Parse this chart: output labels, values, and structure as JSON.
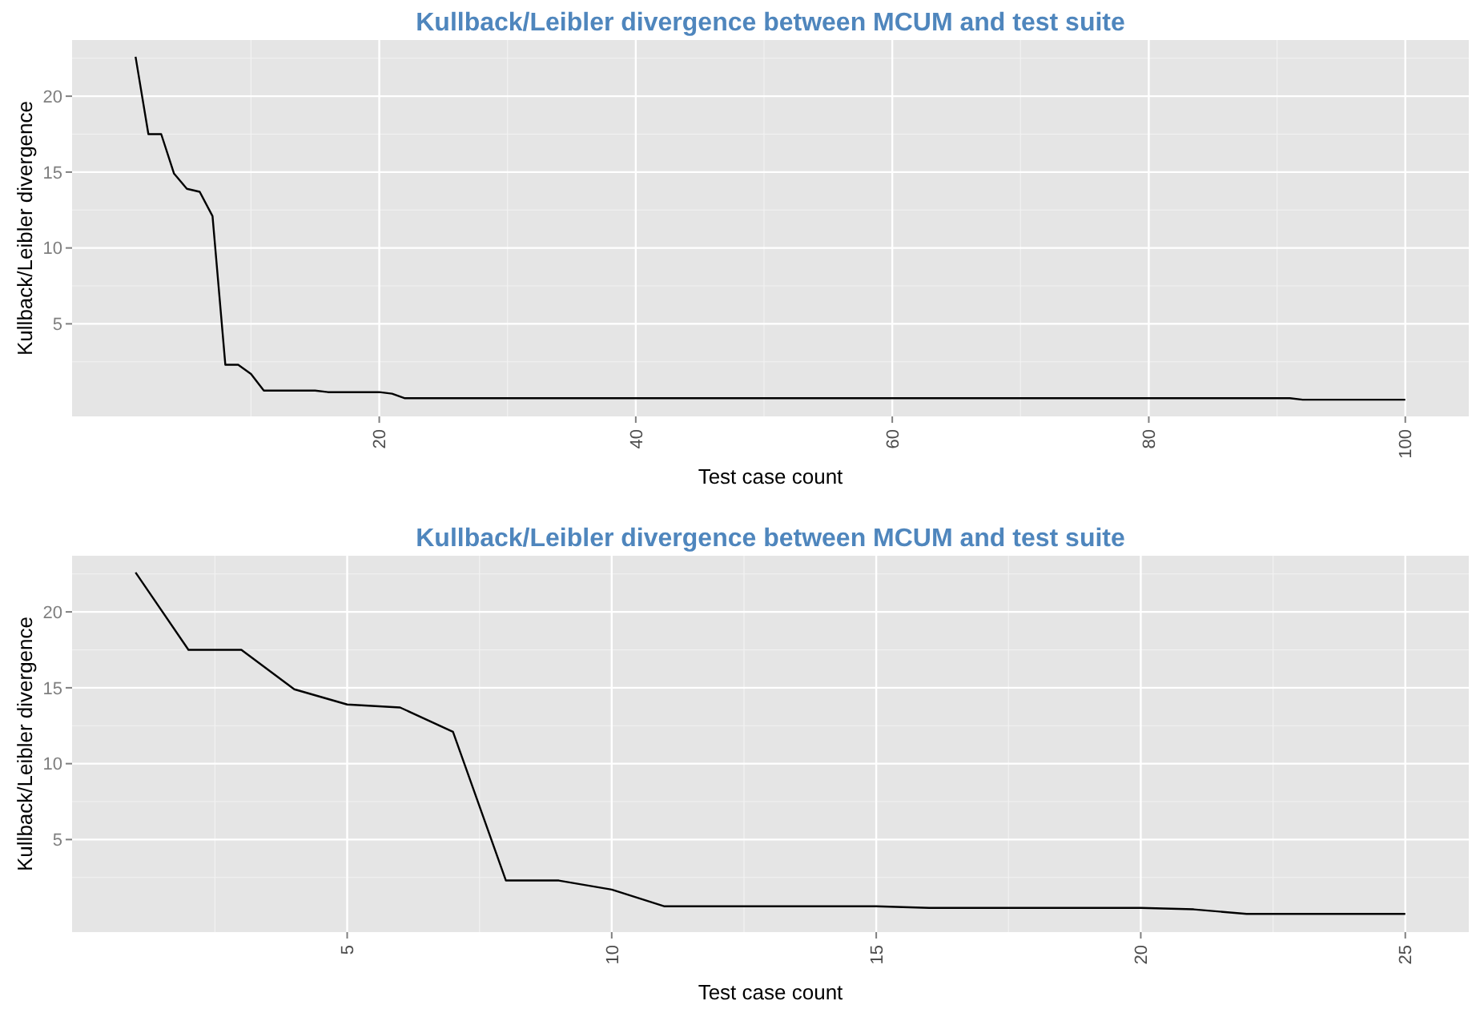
{
  "chart_data": [
    {
      "type": "line",
      "title": "Kullback/Leibler divergence between MCUM and test suite",
      "xlabel": "Test case count",
      "ylabel": "Kullback/Leibler divergence",
      "series": [
        {
          "color": "#000000",
          "x": [
            1,
            2,
            3,
            4,
            5,
            6,
            7,
            8,
            9,
            10,
            11,
            12,
            13,
            14,
            15,
            16,
            17,
            18,
            19,
            20,
            21,
            22,
            91,
            92,
            100
          ],
          "values": [
            22.6,
            17.5,
            17.5,
            14.9,
            13.9,
            13.7,
            12.1,
            2.3,
            2.3,
            1.7,
            0.6,
            0.6,
            0.6,
            0.6,
            0.6,
            0.5,
            0.5,
            0.5,
            0.5,
            0.5,
            0.4,
            0.1,
            0.1,
            0.0,
            0.0
          ]
        }
      ],
      "xlim": [
        -3.95,
        104.95
      ],
      "xticks": [
        20,
        40,
        60,
        80,
        100
      ],
      "ylim": [
        -1.1,
        23.7
      ],
      "yticks": [
        5,
        10,
        15,
        20
      ],
      "grid": true
    },
    {
      "type": "line",
      "title": "Kullback/Leibler divergence between MCUM and test suite",
      "xlabel": "Test case count",
      "ylabel": "Kullback/Leibler divergence",
      "series": [
        {
          "color": "#000000",
          "x": [
            1,
            2,
            3,
            4,
            5,
            6,
            7,
            8,
            9,
            10,
            11,
            12,
            13,
            14,
            15,
            16,
            17,
            18,
            19,
            20,
            21,
            22,
            23,
            24,
            25
          ],
          "values": [
            22.6,
            17.5,
            17.5,
            14.9,
            13.9,
            13.7,
            12.1,
            2.3,
            2.3,
            1.7,
            0.6,
            0.6,
            0.6,
            0.6,
            0.6,
            0.5,
            0.5,
            0.5,
            0.5,
            0.5,
            0.4,
            0.1,
            0.1,
            0.1,
            0.1
          ]
        }
      ],
      "xlim": [
        -0.2,
        26.2
      ],
      "xticks": [
        5,
        10,
        15,
        20,
        25
      ],
      "ylim": [
        -1.1,
        23.7
      ],
      "yticks": [
        5,
        10,
        15,
        20
      ],
      "grid": true
    }
  ]
}
